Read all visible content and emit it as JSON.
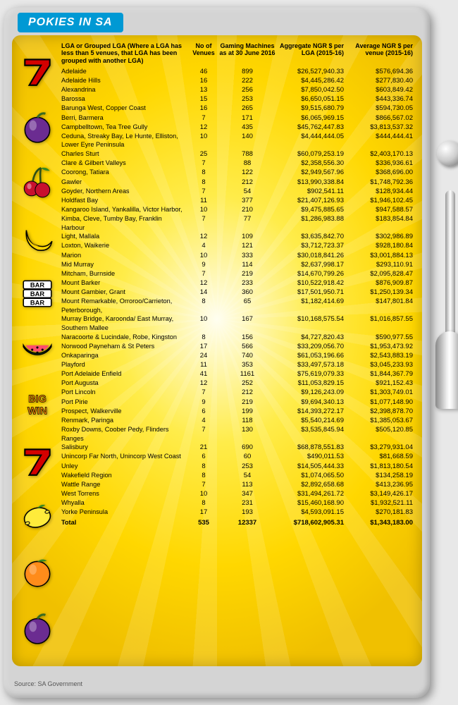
{
  "title": "POKIES IN SA",
  "source": "Source:\nSA Government",
  "headers": {
    "lga": "LGA or Grouped LGA\n(Where a LGA has less than 5 venues, that LGA has been grouped with another LGA)",
    "venues": "No of Venues",
    "machines": "Gaming Machines as at 30 June 2016",
    "aggregate": "Aggregate NGR $ per LGA (2015-16)",
    "average": "Average NGR $ per venue (2015-16)"
  },
  "rows": [
    {
      "lga": "Adelaide",
      "v": "46",
      "m": "899",
      "agg": "$26,527,940.33",
      "avg": "$576,694.36"
    },
    {
      "lga": "Adelaide Hills",
      "v": "16",
      "m": "222",
      "agg": "$4,445,286.42",
      "avg": "$277,830.40"
    },
    {
      "lga": "Alexandrina",
      "v": "13",
      "m": "256",
      "agg": "$7,850,042.50",
      "avg": "$603,849.42"
    },
    {
      "lga": "Barossa",
      "v": "15",
      "m": "253",
      "agg": "$6,650,051.15",
      "avg": "$443,336.74"
    },
    {
      "lga": "Barunga West, Copper Coast",
      "v": "16",
      "m": "265",
      "agg": "$9,515,680.79",
      "avg": "$594,730.05"
    },
    {
      "lga": "Berri, Barmera",
      "v": "7",
      "m": "171",
      "agg": "$6,065,969.15",
      "avg": "$866,567.02"
    },
    {
      "lga": "Campbelltown, Tea Tree Gully",
      "v": "12",
      "m": "435",
      "agg": "$45,762,447.83",
      "avg": "$3,813,537.32"
    },
    {
      "lga": "Ceduna, Streaky Bay, Le Hunte, Elliston, Lower Eyre Peninsula",
      "v": "10",
      "m": "140",
      "agg": "$4,444,444.05",
      "avg": "$444,444.41"
    },
    {
      "lga": "Charles Sturt",
      "v": "25",
      "m": "788",
      "agg": "$60,079,253.19",
      "avg": "$2,403,170.13"
    },
    {
      "lga": "Clare & Gilbert Valleys",
      "v": "7",
      "m": "88",
      "agg": "$2,358,556.30",
      "avg": "$336,936.61"
    },
    {
      "lga": "Coorong, Tatiara",
      "v": "8",
      "m": "122",
      "agg": "$2,949,567.96",
      "avg": "$368,696.00"
    },
    {
      "lga": "Gawler",
      "v": "8",
      "m": "212",
      "agg": "$13,990,338.84",
      "avg": "$1,748,792.36"
    },
    {
      "lga": "Goyder, Northern Areas",
      "v": "7",
      "m": "54",
      "agg": "$902,541.11",
      "avg": "$128,934.44"
    },
    {
      "lga": "Holdfast Bay",
      "v": "11",
      "m": "377",
      "agg": "$21,407,126.93",
      "avg": "$1,946,102.45"
    },
    {
      "lga": "Kangaroo Island, Yankalilla, Victor Harbor,",
      "v": "10",
      "m": "210",
      "agg": "$9,475,885.65",
      "avg": "$947,588.57"
    },
    {
      "lga": "Kimba, Cleve, Tumby Bay, Franklin Harbour",
      "v": "7",
      "m": "77",
      "agg": "$1,286,983.88",
      "avg": "$183,854.84"
    },
    {
      "lga": "Light, Mallala",
      "v": "12",
      "m": "109",
      "agg": "$3,635,842.70",
      "avg": "$302,986.89"
    },
    {
      "lga": "Loxton, Waikerie",
      "v": "4",
      "m": "121",
      "agg": "$3,712,723.37",
      "avg": "$928,180.84"
    },
    {
      "lga": "Marion",
      "v": "10",
      "m": "333",
      "agg": "$30,018,841.26",
      "avg": "$3,001,884.13"
    },
    {
      "lga": "Mid Murray",
      "v": "9",
      "m": "114",
      "agg": "$2,637,998.17",
      "avg": "$293,110.91"
    },
    {
      "lga": "Mitcham, Burnside",
      "v": "7",
      "m": "219",
      "agg": "$14,670,799.26",
      "avg": "$2,095,828.47"
    },
    {
      "lga": "Mount Barker",
      "v": "12",
      "m": "233",
      "agg": "$10,522,918.42",
      "avg": "$876,909.87"
    },
    {
      "lga": "Mount Gambier, Grant",
      "v": "14",
      "m": "360",
      "agg": "$17,501,950.71",
      "avg": "$1,250,139.34"
    },
    {
      "lga": "Mount Remarkable, Orroroo/Carrieton, Peterborough,",
      "v": "8",
      "m": "65",
      "agg": "$1,182,414.69",
      "avg": "$147,801.84"
    },
    {
      "lga": "Murray Bridge, Karoonda/ East Murray, Southern Mallee",
      "v": "10",
      "m": "167",
      "agg": "$10,168,575.54",
      "avg": "$1,016,857.55"
    },
    {
      "lga": "Naracoorte & Lucindale, Robe, Kingston",
      "v": "8",
      "m": "156",
      "agg": "$4,727,820.43",
      "avg": "$590,977.55"
    },
    {
      "lga": "Norwood Payneham & St Peters",
      "v": "17",
      "m": "566",
      "agg": "$33,209,056.70",
      "avg": "$1,953,473.92"
    },
    {
      "lga": "Onkaparinga",
      "v": "24",
      "m": "740",
      "agg": "$61,053,196.66",
      "avg": "$2,543,883.19"
    },
    {
      "lga": "Playford",
      "v": "11",
      "m": "353",
      "agg": "$33,497,573.18",
      "avg": "$3,045,233.93"
    },
    {
      "lga": "Port Adelaide Enfield",
      "v": "41",
      "m": "1161",
      "agg": "$75,619,079.33",
      "avg": "$1,844,367.79"
    },
    {
      "lga": "Port Augusta",
      "v": "12",
      "m": "252",
      "agg": "$11,053,829.15",
      "avg": "$921,152.43"
    },
    {
      "lga": "Port Lincoln",
      "v": "7",
      "m": "212",
      "agg": "$9,126,243.09",
      "avg": "$1,303,749.01"
    },
    {
      "lga": "Port Pirie",
      "v": "9",
      "m": "219",
      "agg": "$9,694,340.13",
      "avg": "$1,077,148.90"
    },
    {
      "lga": "Prospect, Walkerville",
      "v": "6",
      "m": "199",
      "agg": "$14,393,272.17",
      "avg": "$2,398,878.70"
    },
    {
      "lga": "Renmark, Paringa",
      "v": "4",
      "m": "118",
      "agg": "$5,540,214.69",
      "avg": "$1,385,053.67"
    },
    {
      "lga": "Roxby Downs, Coober Pedy, Flinders Ranges",
      "v": "7",
      "m": "130",
      "agg": "$3,535,845.94",
      "avg": "$505,120.85"
    },
    {
      "lga": "Salisbury",
      "v": "21",
      "m": "690",
      "agg": "$68,878,551.83",
      "avg": "$3,279,931.04"
    },
    {
      "lga": "Unincorp Far North, Unincorp West Coast",
      "v": "6",
      "m": "60",
      "agg": "$490,011.53",
      "avg": "$81,668.59"
    },
    {
      "lga": "Unley",
      "v": "8",
      "m": "253",
      "agg": "$14,505,444.33",
      "avg": "$1,813,180.54"
    },
    {
      "lga": "Wakefield Region",
      "v": "8",
      "m": "54",
      "agg": "$1,074,065.50",
      "avg": "$134,258.19"
    },
    {
      "lga": "Wattle Range",
      "v": "7",
      "m": "113",
      "agg": "$2,892,658.68",
      "avg": "$413,236.95"
    },
    {
      "lga": "West Torrens",
      "v": "10",
      "m": "347",
      "agg": "$31,494,261.72",
      "avg": "$3,149,426.17"
    },
    {
      "lga": "Whyalla",
      "v": "8",
      "m": "231",
      "agg": "$15,460,168.90",
      "avg": "$1,932,521.11"
    },
    {
      "lga": "Yorke Peninsula",
      "v": "17",
      "m": "193",
      "agg": "$4,593,091.15",
      "avg": "$270,181.83"
    }
  ],
  "total": {
    "lga": "Total",
    "v": "535",
    "m": "12337",
    "agg": "$718,602,905.31",
    "avg": "$1,343,183.00"
  },
  "icons": [
    "seven",
    "plum",
    "cherries",
    "banana",
    "bar",
    "watermelon",
    "bigwin",
    "seven",
    "lemon",
    "orange",
    "plum"
  ]
}
